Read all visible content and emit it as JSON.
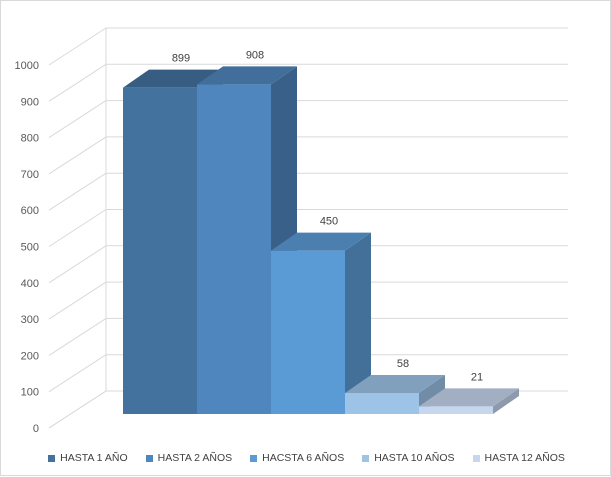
{
  "chart_data": {
    "type": "bar",
    "three_d": true,
    "categories": [
      "HASTA 1 AÑO",
      "HASTA 2 AÑOS",
      "HACSTA 6 AÑOS",
      "HASTA 10 AÑOS",
      "HASTA 12 AÑOS"
    ],
    "values": [
      899,
      908,
      450,
      58,
      21
    ],
    "data_labels": [
      "899",
      "908",
      "450",
      "58",
      "21"
    ],
    "series": [
      {
        "name": "HASTA 1 AÑO",
        "value": 899,
        "color": "#44729f"
      },
      {
        "name": "HASTA 2 AÑOS",
        "value": 908,
        "color": "#4f86bd"
      },
      {
        "name": "HACSTA 6 AÑOS",
        "value": 450,
        "color": "#5b9bd5"
      },
      {
        "name": "HASTA 10 AÑOS",
        "value": 58,
        "color": "#9dc3e6"
      },
      {
        "name": "HASTA 12 AÑOS",
        "value": 21,
        "color": "#c5d6ee"
      }
    ],
    "y_ticks": [
      "0",
      "100",
      "200",
      "300",
      "400",
      "500",
      "600",
      "700",
      "800",
      "900",
      "1000"
    ],
    "ylim": [
      0,
      1000
    ],
    "grid": true,
    "legend_position": "bottom",
    "title": "",
    "xlabel": "",
    "ylabel": ""
  }
}
